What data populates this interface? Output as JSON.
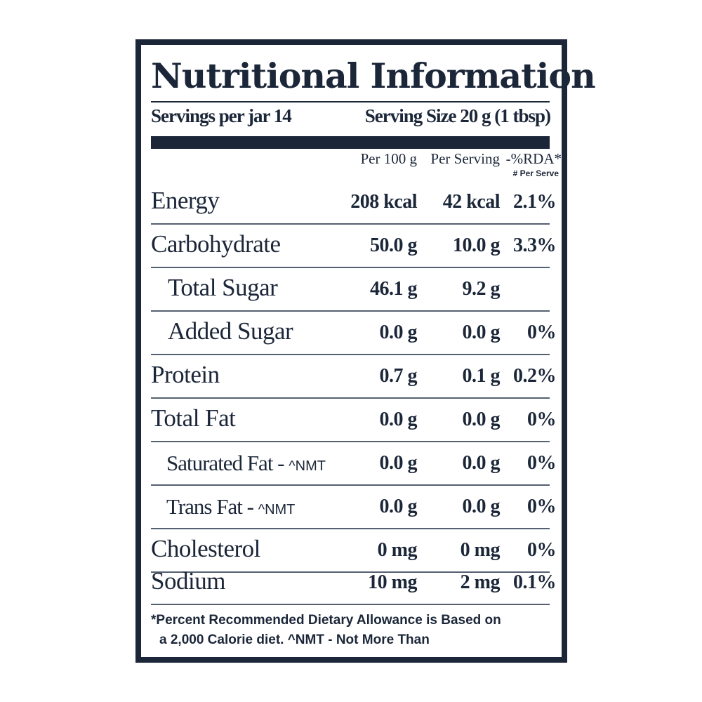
{
  "title": "Nutritional Information",
  "servings": {
    "per_jar_label": "Servings per jar 14",
    "size_label": "Serving Size  20 g (1 tbsp)"
  },
  "columns": {
    "per100": "Per 100 g",
    "per_serving": "Per Serving",
    "rda": "-%RDA*",
    "rda_sub": "# Per Serve"
  },
  "rows": [
    {
      "name": "Energy",
      "per100": "208 kcal",
      "per_serving": "42 kcal",
      "rda": "2.1%"
    },
    {
      "name": "Carbohydrate",
      "per100": "50.0 g",
      "per_serving": "10.0 g",
      "rda": "3.3%"
    },
    {
      "name": "Total Sugar",
      "per100": "46.1 g",
      "per_serving": "9.2 g",
      "rda": ""
    },
    {
      "name": "Added Sugar",
      "per100": "0.0 g",
      "per_serving": "0.0 g",
      "rda": "0%"
    },
    {
      "name": "Protein",
      "per100": "0.7 g",
      "per_serving": "0.1 g",
      "rda": "0.2%"
    },
    {
      "name": "Total Fat",
      "per100": "0.0 g",
      "per_serving": "0.0 g",
      "rda": "0%"
    },
    {
      "name": "Saturated Fat - ",
      "suffix": "^NMT",
      "per100": "0.0 g",
      "per_serving": "0.0 g",
      "rda": "0%"
    },
    {
      "name": "Trans Fat - ",
      "suffix": "^NMT",
      "per100": "0.0 g",
      "per_serving": "0.0 g",
      "rda": "0%"
    },
    {
      "name": "Cholesterol",
      "per100": "0 mg",
      "per_serving": "0 mg",
      "rda": "0%"
    },
    {
      "name": "Sodium",
      "per100": "10 mg",
      "per_serving": "2 mg",
      "rda": "0.1%"
    }
  ],
  "footnote": {
    "line1": "*Percent Recommended Dietary Allowance is Based on",
    "line2": "a 2,000 Calorie diet. ^NMT - Not More Than"
  },
  "colors": {
    "ink": "#1b2638"
  }
}
